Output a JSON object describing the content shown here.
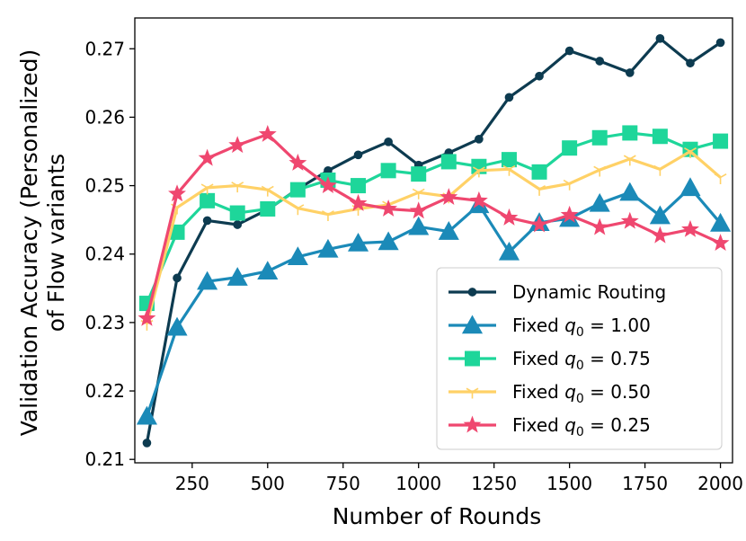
{
  "chart_data": {
    "type": "line",
    "title": "",
    "xlabel": "Number of Rounds",
    "ylabel_lines": [
      "Validation Accuracy (Personalized)",
      "of Flow variants"
    ],
    "xlim": [
      60,
      2040
    ],
    "ylim": [
      0.2095,
      0.2745
    ],
    "xticks": [
      250,
      500,
      750,
      1000,
      1250,
      1500,
      1750,
      2000
    ],
    "xtick_labels": [
      "250",
      "500",
      "750",
      "1000",
      "1250",
      "1500",
      "1750",
      "2000"
    ],
    "yticks": [
      0.21,
      0.22,
      0.23,
      0.24,
      0.25,
      0.26,
      0.27
    ],
    "ytick_labels": [
      "0.21",
      "0.22",
      "0.23",
      "0.24",
      "0.25",
      "0.26",
      "0.27"
    ],
    "legend_position": "lower-right",
    "x": [
      100,
      200,
      300,
      400,
      500,
      600,
      700,
      800,
      900,
      1000,
      1100,
      1200,
      1300,
      1400,
      1500,
      1600,
      1700,
      1800,
      1900,
      2000
    ],
    "series": [
      {
        "name": "Dynamic Routing",
        "legend_parts": [
          "Dynamic Routing"
        ],
        "color": "#0d3b50",
        "marker": "circle",
        "values": [
          0.2124,
          0.2365,
          0.2449,
          0.2443,
          0.2465,
          0.2495,
          0.2522,
          0.2545,
          0.2564,
          0.253,
          0.2548,
          0.2568,
          0.2629,
          0.266,
          0.2697,
          0.2682,
          0.2665,
          0.2715,
          0.2679,
          0.2709
        ]
      },
      {
        "name": "Fixed q0 = 1.00",
        "legend_parts": [
          "Fixed ",
          "q",
          "0",
          " = 1.00"
        ],
        "color": "#1b8ab8",
        "marker": "triangle",
        "values": [
          0.2163,
          0.2293,
          0.236,
          0.2366,
          0.2375,
          0.2396,
          0.2407,
          0.2416,
          0.2418,
          0.244,
          0.2433,
          0.2472,
          0.2403,
          0.2446,
          0.2452,
          0.2474,
          0.249,
          0.2456,
          0.2497,
          0.2445
        ]
      },
      {
        "name": "Fixed q0 = 0.75",
        "legend_parts": [
          "Fixed ",
          "q",
          "0",
          " = 0.75"
        ],
        "color": "#1ed69a",
        "marker": "square",
        "values": [
          0.2328,
          0.2432,
          0.2478,
          0.246,
          0.2466,
          0.2494,
          0.2508,
          0.25,
          0.2522,
          0.2517,
          0.2535,
          0.2528,
          0.2538,
          0.252,
          0.2555,
          0.257,
          0.2577,
          0.2572,
          0.2553,
          0.2565
        ]
      },
      {
        "name": "Fixed q0 = 0.50",
        "legend_parts": [
          "Fixed ",
          "q",
          "0",
          " = 0.50"
        ],
        "color": "#ffd166",
        "marker": "tri_down",
        "values": [
          0.2298,
          0.2468,
          0.2497,
          0.25,
          0.2494,
          0.2467,
          0.2458,
          0.2466,
          0.2472,
          0.249,
          0.2484,
          0.2522,
          0.2524,
          0.2495,
          0.2503,
          0.2523,
          0.2539,
          0.2524,
          0.255,
          0.2512
        ]
      },
      {
        "name": "Fixed q0 = 0.25",
        "legend_parts": [
          "Fixed ",
          "q",
          "0",
          " = 0.25"
        ],
        "color": "#ef476f",
        "marker": "star",
        "values": [
          0.2306,
          0.2488,
          0.254,
          0.2559,
          0.2575,
          0.2533,
          0.25,
          0.2474,
          0.2466,
          0.2463,
          0.2483,
          0.2478,
          0.2453,
          0.2443,
          0.2457,
          0.2439,
          0.2448,
          0.2427,
          0.2436,
          0.2416
        ]
      }
    ]
  }
}
